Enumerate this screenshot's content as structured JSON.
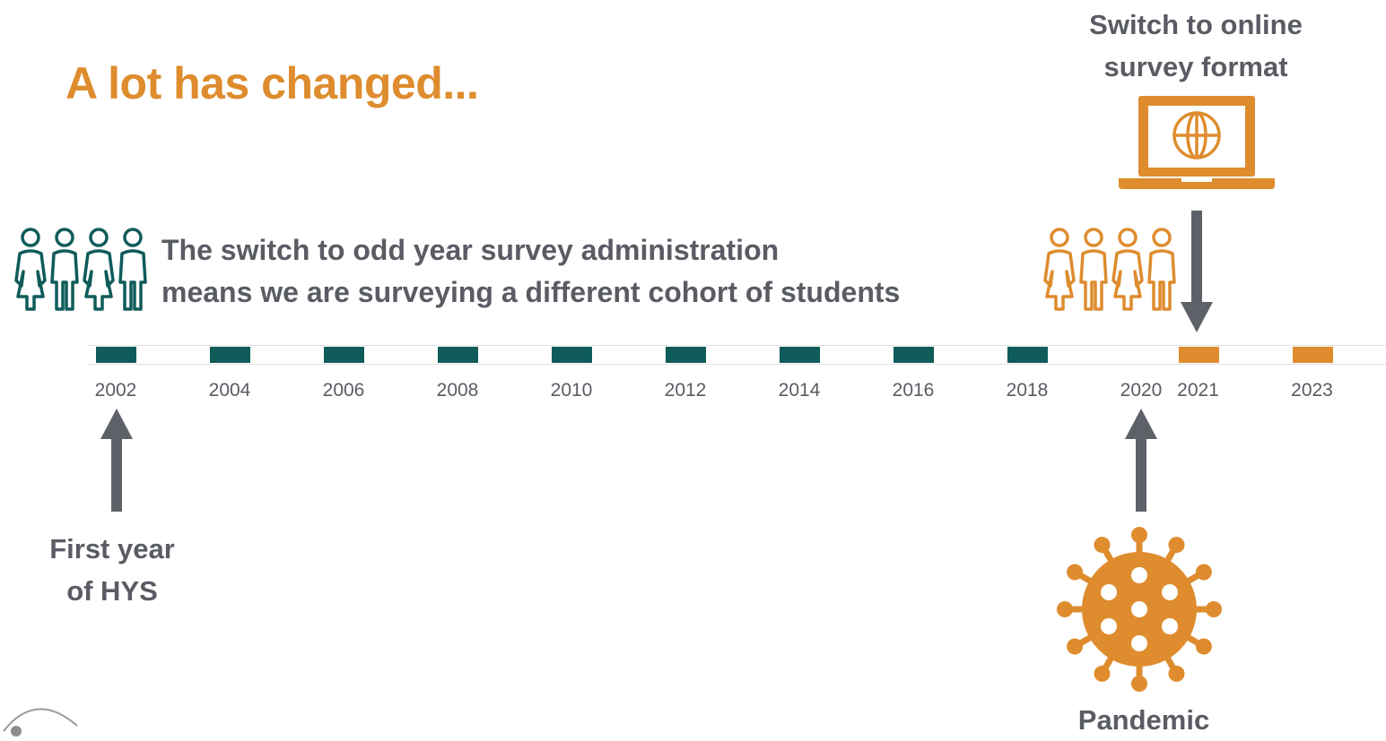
{
  "title": "A lot has changed...",
  "events": {
    "online": {
      "line1": "Switch to online",
      "line2": "survey format",
      "icon": "laptop-globe-icon"
    },
    "cohort": {
      "line1": "The switch to odd year survey administration",
      "line2": "means we are surveying a different cohort of students",
      "icon": "students-icon"
    },
    "first_year": {
      "line1": "First year",
      "line2": "of HYS"
    },
    "pandemic": {
      "label": "Pandemic",
      "icon": "virus-icon"
    }
  },
  "timeline": {
    "years": [
      "2002",
      "2004",
      "2006",
      "2008",
      "2010",
      "2012",
      "2014",
      "2016",
      "2018",
      "2020",
      "2021",
      "2023"
    ],
    "survey_years": [
      "2002",
      "2004",
      "2006",
      "2008",
      "2010",
      "2012",
      "2014",
      "2016",
      "2018",
      "2021",
      "2023"
    ],
    "online_years": [
      "2021",
      "2023"
    ]
  },
  "colors": {
    "orange": "#DE8C2E",
    "teal": "#0F5C5A",
    "gray_text": "#595C63",
    "arrow": "#5E6168",
    "rail": "#E2E2E2"
  }
}
